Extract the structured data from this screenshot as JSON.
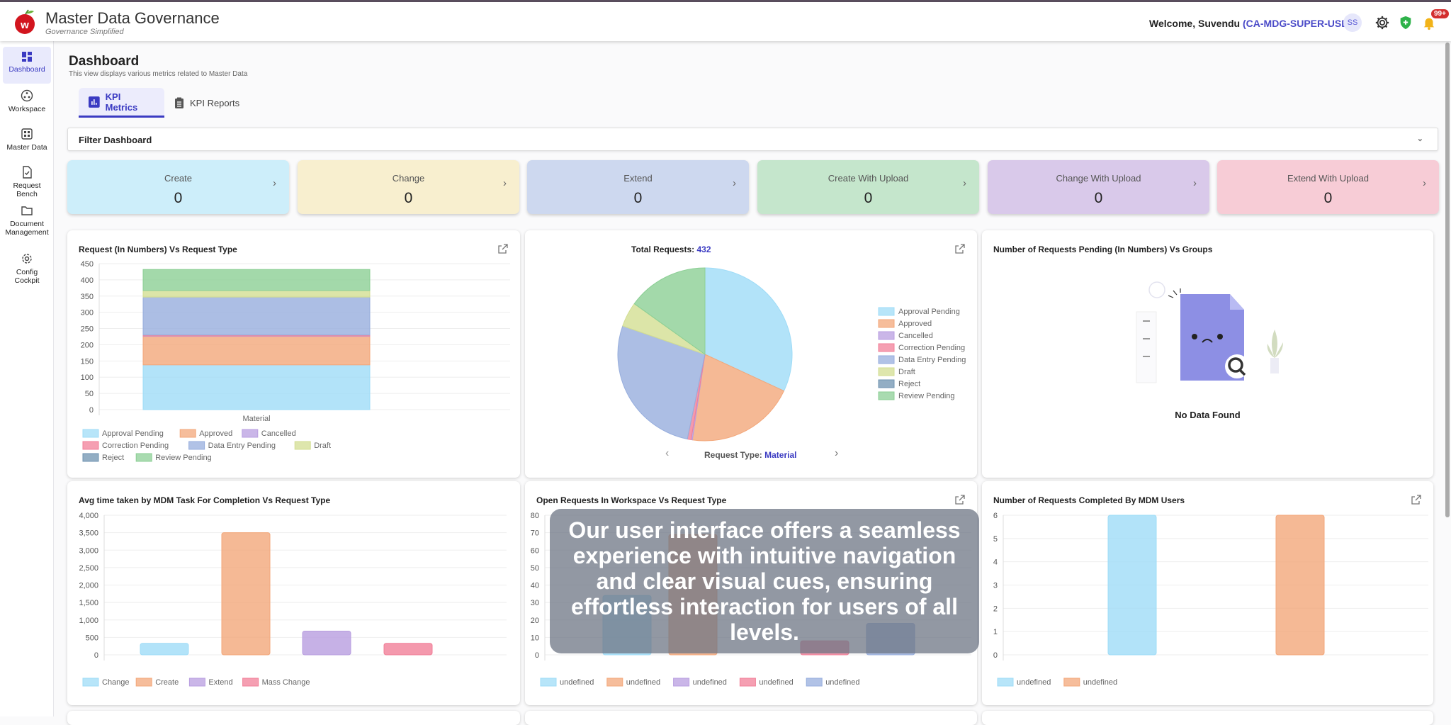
{
  "header": {
    "title": "Master Data Governance",
    "subtitle": "Governance Simplified",
    "welcome": "Welcome, Suvendu",
    "role": "(CA-MDG-SUPER-USER)",
    "avatar": "SS",
    "notification_badge": "99+",
    "icons": [
      "settings-icon",
      "shield-icon",
      "bell-icon"
    ]
  },
  "sidebar": {
    "items": [
      {
        "label": "Dashboard",
        "icon": "dashboard-icon",
        "active": true
      },
      {
        "label": "Workspace",
        "icon": "workspace-icon"
      },
      {
        "label": "Master Data",
        "icon": "grid-icon"
      },
      {
        "label": "Request Bench",
        "icon": "document-check-icon"
      },
      {
        "label": "Document Management",
        "icon": "folder-icon"
      },
      {
        "label": "Config Cockpit",
        "icon": "gear-icon"
      }
    ]
  },
  "page": {
    "title": "Dashboard",
    "subtitle": "This view displays various metrics related to Master Data"
  },
  "tabs": [
    {
      "label": "KPI Metrics",
      "active": true
    },
    {
      "label": "KPI Reports"
    }
  ],
  "filter": {
    "label": "Filter Dashboard"
  },
  "kpis": [
    {
      "label": "Create",
      "value": "0",
      "color": "#cdeefa"
    },
    {
      "label": "Change",
      "value": "0",
      "color": "#f8efcf"
    },
    {
      "label": "Extend",
      "value": "0",
      "color": "#cdd8ef"
    },
    {
      "label": "Create With Upload",
      "value": "0",
      "color": "#c5e6cc"
    },
    {
      "label": "Change With Upload",
      "value": "0",
      "color": "#d9c9ea"
    },
    {
      "label": "Extend With Upload",
      "value": "0",
      "color": "#f7ccd6"
    }
  ],
  "overlay": {
    "text": "Our user interface offers a seamless experience with intuitive navigation and clear visual cues, ensuring effortless interaction for users of all levels."
  },
  "no_data": "No Data Found",
  "pie_nav": {
    "label": "Request Type:",
    "value": "Material"
  },
  "chart_data": [
    {
      "type": "bar",
      "stacked": true,
      "title": "Request (In Numbers) Vs Request Type",
      "categories": [
        "Material"
      ],
      "ylim": [
        0,
        450
      ],
      "yticks": [
        0,
        50,
        100,
        150,
        200,
        250,
        300,
        350,
        400,
        450
      ],
      "legend": "bottom",
      "series": [
        {
          "name": "Approval Pending",
          "values": [
            138
          ],
          "color": "#9fdcf7"
        },
        {
          "name": "Approved",
          "values": [
            88
          ],
          "color": "#f3a77a"
        },
        {
          "name": "Cancelled",
          "values": [
            1
          ],
          "color": "#b89ee0"
        },
        {
          "name": "Correction Pending",
          "values": [
            3
          ],
          "color": "#f17f98"
        },
        {
          "name": "Data Entry Pending",
          "values": [
            117
          ],
          "color": "#97aedd"
        },
        {
          "name": "Draft",
          "values": [
            20
          ],
          "color": "#d3de92"
        },
        {
          "name": "Reject",
          "values": [
            0
          ],
          "color": "#6f93b0"
        },
        {
          "name": "Review Pending",
          "values": [
            65
          ],
          "color": "#8ccf95"
        }
      ]
    },
    {
      "type": "pie",
      "title": "Total Requests:",
      "total": "432",
      "legend": "right",
      "labels": [
        "Approval Pending",
        "Approved",
        "Cancelled",
        "Correction Pending",
        "Data Entry Pending",
        "Draft",
        "Reject",
        "Review Pending"
      ],
      "values": [
        138,
        88,
        1,
        3,
        117,
        20,
        0,
        65
      ],
      "colors": [
        "#9fdcf7",
        "#f3a77a",
        "#b89ee0",
        "#f17f98",
        "#97aedd",
        "#d3de92",
        "#6f93b0",
        "#8ccf95"
      ]
    },
    {
      "type": "bar",
      "title": "Avg time taken by MDM Task For Completion Vs Request Type",
      "ylim": [
        0,
        4000
      ],
      "yticks": [
        "0",
        "500",
        "1,000",
        "1,500",
        "2,000",
        "2,500",
        "3,000",
        "3,500",
        "4,000"
      ],
      "legend": "bottom",
      "categories": [
        "Change",
        "Create",
        "Extend",
        "Mass Change"
      ],
      "values": [
        330,
        3500,
        680,
        330
      ],
      "colors": [
        "#9fdcf7",
        "#f3a77a",
        "#b89ee0",
        "#f17f98"
      ],
      "series_names": [
        "Change",
        "Create",
        "Extend",
        "Mass Change"
      ]
    },
    {
      "type": "bar",
      "title": "Open Requests In Workspace Vs Request Type",
      "ylim": [
        0,
        80
      ],
      "yticks": [
        "0",
        "10",
        "20",
        "30",
        "40",
        "50",
        "60",
        "70",
        "80"
      ],
      "legend": "bottom",
      "values": [
        34,
        69,
        0,
        8,
        18
      ],
      "colors": [
        "#9fdcf7",
        "#f3a77a",
        "#b89ee0",
        "#f17f98",
        "#97aedd"
      ],
      "series_names": [
        "undefined",
        "undefined",
        "undefined",
        "undefined",
        "undefined"
      ]
    },
    {
      "type": "bar",
      "title": "Number of Requests Completed By MDM Users",
      "ylim": [
        0,
        6
      ],
      "yticks": [
        "0",
        "1",
        "2",
        "3",
        "4",
        "5",
        "6"
      ],
      "legend": "bottom",
      "values": [
        6,
        6
      ],
      "colors": [
        "#9fdcf7",
        "#f3a77a"
      ],
      "series_names": [
        "undefined",
        "undefined"
      ]
    },
    {
      "type": "empty",
      "title": "Number of Requests Pending (In Numbers) Vs Groups"
    }
  ]
}
